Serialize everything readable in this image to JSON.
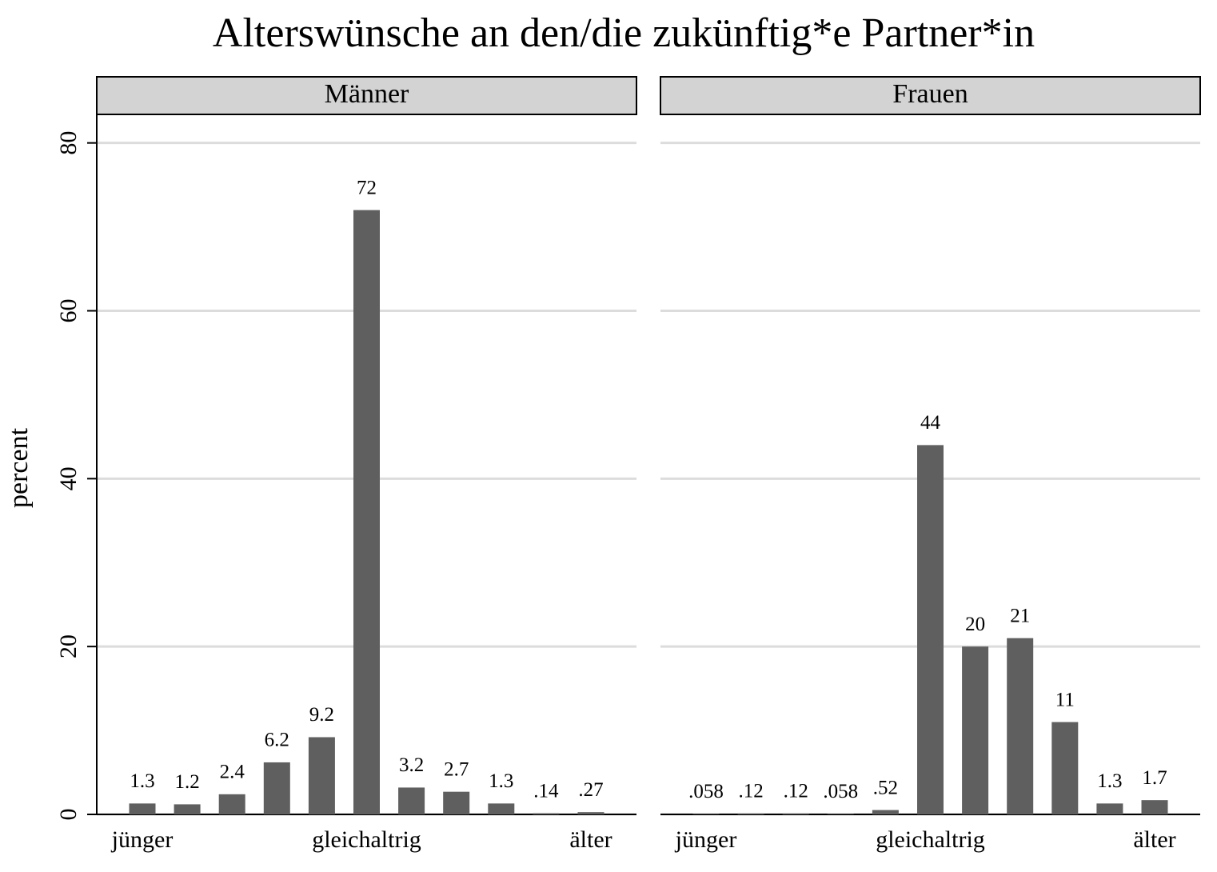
{
  "title": "Alterswünsche an den/die zukünftig*e Partner*in",
  "chart_data": [
    {
      "type": "bar",
      "subtitle": "Männer",
      "ylabel": "percent",
      "categories": [
        "jünger",
        null,
        null,
        null,
        null,
        "gleichaltrig",
        null,
        null,
        null,
        null,
        "älter"
      ],
      "values": [
        1.3,
        1.2,
        2.4,
        6.2,
        9.2,
        72,
        3.2,
        2.7,
        1.3,
        0.14,
        0.27
      ],
      "value_labels": [
        "1.3",
        "1.2",
        "2.4",
        "6.2",
        "9.2",
        "72",
        "3.2",
        "2.7",
        "1.3",
        ".14",
        ".27"
      ],
      "color": "#5f5f5f",
      "ylim": [
        0,
        83.4
      ],
      "yticks": [
        0,
        20,
        40,
        60,
        80
      ],
      "grid": true
    },
    {
      "type": "bar",
      "subtitle": "Frauen",
      "categories": [
        "jünger",
        null,
        null,
        null,
        null,
        "gleichaltrig",
        null,
        null,
        null,
        null,
        "älter"
      ],
      "values": [
        0.058,
        0.12,
        0.12,
        0.058,
        0.52,
        44,
        20,
        21,
        11,
        1.3,
        1.7
      ],
      "value_labels": [
        ".058",
        ".12",
        ".12",
        ".058",
        ".52",
        "44",
        "20",
        "21",
        "11",
        "1.3",
        "1.7"
      ],
      "color": "#5f5f5f",
      "ylim": [
        0,
        83.4
      ],
      "yticks": [
        0,
        20,
        40,
        60,
        80
      ],
      "grid": true
    }
  ]
}
